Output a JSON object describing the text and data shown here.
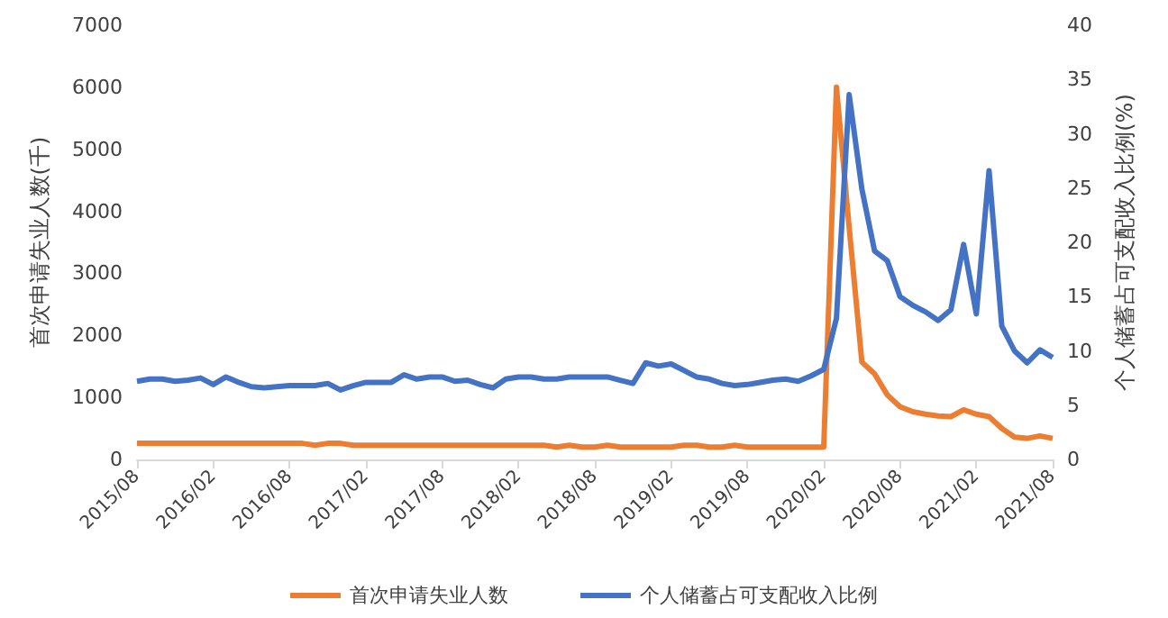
{
  "chart_data": {
    "type": "line",
    "ylabel": "首次申请失业人数(千)",
    "y2label": "个人储蓄占可支配收入比例(%)",
    "categories": [
      "2015/08",
      null,
      null,
      null,
      null,
      null,
      "2016/02",
      null,
      null,
      null,
      null,
      null,
      "2016/08",
      null,
      null,
      null,
      null,
      null,
      "2017/02",
      null,
      null,
      null,
      null,
      null,
      "2017/08",
      null,
      null,
      null,
      null,
      null,
      "2018/02",
      null,
      null,
      null,
      null,
      null,
      "2018/08",
      null,
      null,
      null,
      null,
      null,
      "2019/02",
      null,
      null,
      null,
      null,
      null,
      "2019/08",
      null,
      null,
      null,
      null,
      null,
      "2020/02",
      null,
      null,
      null,
      null,
      null,
      "2020/08",
      null,
      null,
      null,
      null,
      null,
      "2021/02",
      null,
      null,
      null,
      null,
      null,
      "2021/08"
    ],
    "series": [
      {
        "name": "首次申请失业人数",
        "color": "#ed7d31",
        "values": [
          260,
          260,
          260,
          260,
          260,
          260,
          260,
          260,
          260,
          260,
          260,
          260,
          260,
          260,
          230,
          260,
          260,
          230,
          230,
          230,
          230,
          230,
          230,
          230,
          230,
          230,
          230,
          230,
          230,
          230,
          230,
          230,
          230,
          200,
          230,
          200,
          200,
          230,
          200,
          200,
          200,
          200,
          200,
          230,
          230,
          200,
          200,
          230,
          200,
          200,
          200,
          200,
          200,
          200,
          200,
          6000,
          3740,
          1570,
          1380,
          1040,
          850,
          770,
          730,
          700,
          690,
          800,
          730,
          690,
          500,
          360,
          340,
          380,
          340
        ]
      },
      {
        "name": "个人储蓄占可支配收入比例",
        "color": "#4472c4",
        "axis": "y2",
        "values": [
          7.2,
          7.4,
          7.4,
          7.2,
          7.3,
          7.5,
          6.9,
          7.6,
          7.1,
          6.7,
          6.6,
          6.7,
          6.8,
          6.8,
          6.8,
          7.0,
          6.4,
          6.8,
          7.1,
          7.1,
          7.1,
          7.8,
          7.4,
          7.6,
          7.6,
          7.2,
          7.3,
          6.9,
          6.6,
          7.4,
          7.6,
          7.6,
          7.4,
          7.4,
          7.6,
          7.6,
          7.6,
          7.6,
          7.3,
          7.0,
          8.9,
          8.6,
          8.8,
          8.2,
          7.6,
          7.4,
          7.0,
          6.8,
          6.9,
          7.1,
          7.3,
          7.4,
          7.2,
          7.7,
          8.3,
          13.0,
          33.6,
          24.9,
          19.2,
          18.3,
          15.0,
          14.2,
          13.6,
          12.8,
          13.8,
          19.8,
          13.4,
          26.6,
          12.3,
          10.0,
          8.9,
          10.1,
          9.4
        ]
      }
    ],
    "ylim": [
      0,
      7000
    ],
    "yticks": [
      0,
      1000,
      2000,
      3000,
      4000,
      5000,
      6000,
      7000
    ],
    "y2lim": [
      0,
      40
    ],
    "y2ticks": [
      0,
      5,
      10,
      15,
      20,
      25,
      30,
      35,
      40
    ],
    "grid": false,
    "legend": "bottom",
    "marker": "none",
    "line_style": "solid"
  }
}
